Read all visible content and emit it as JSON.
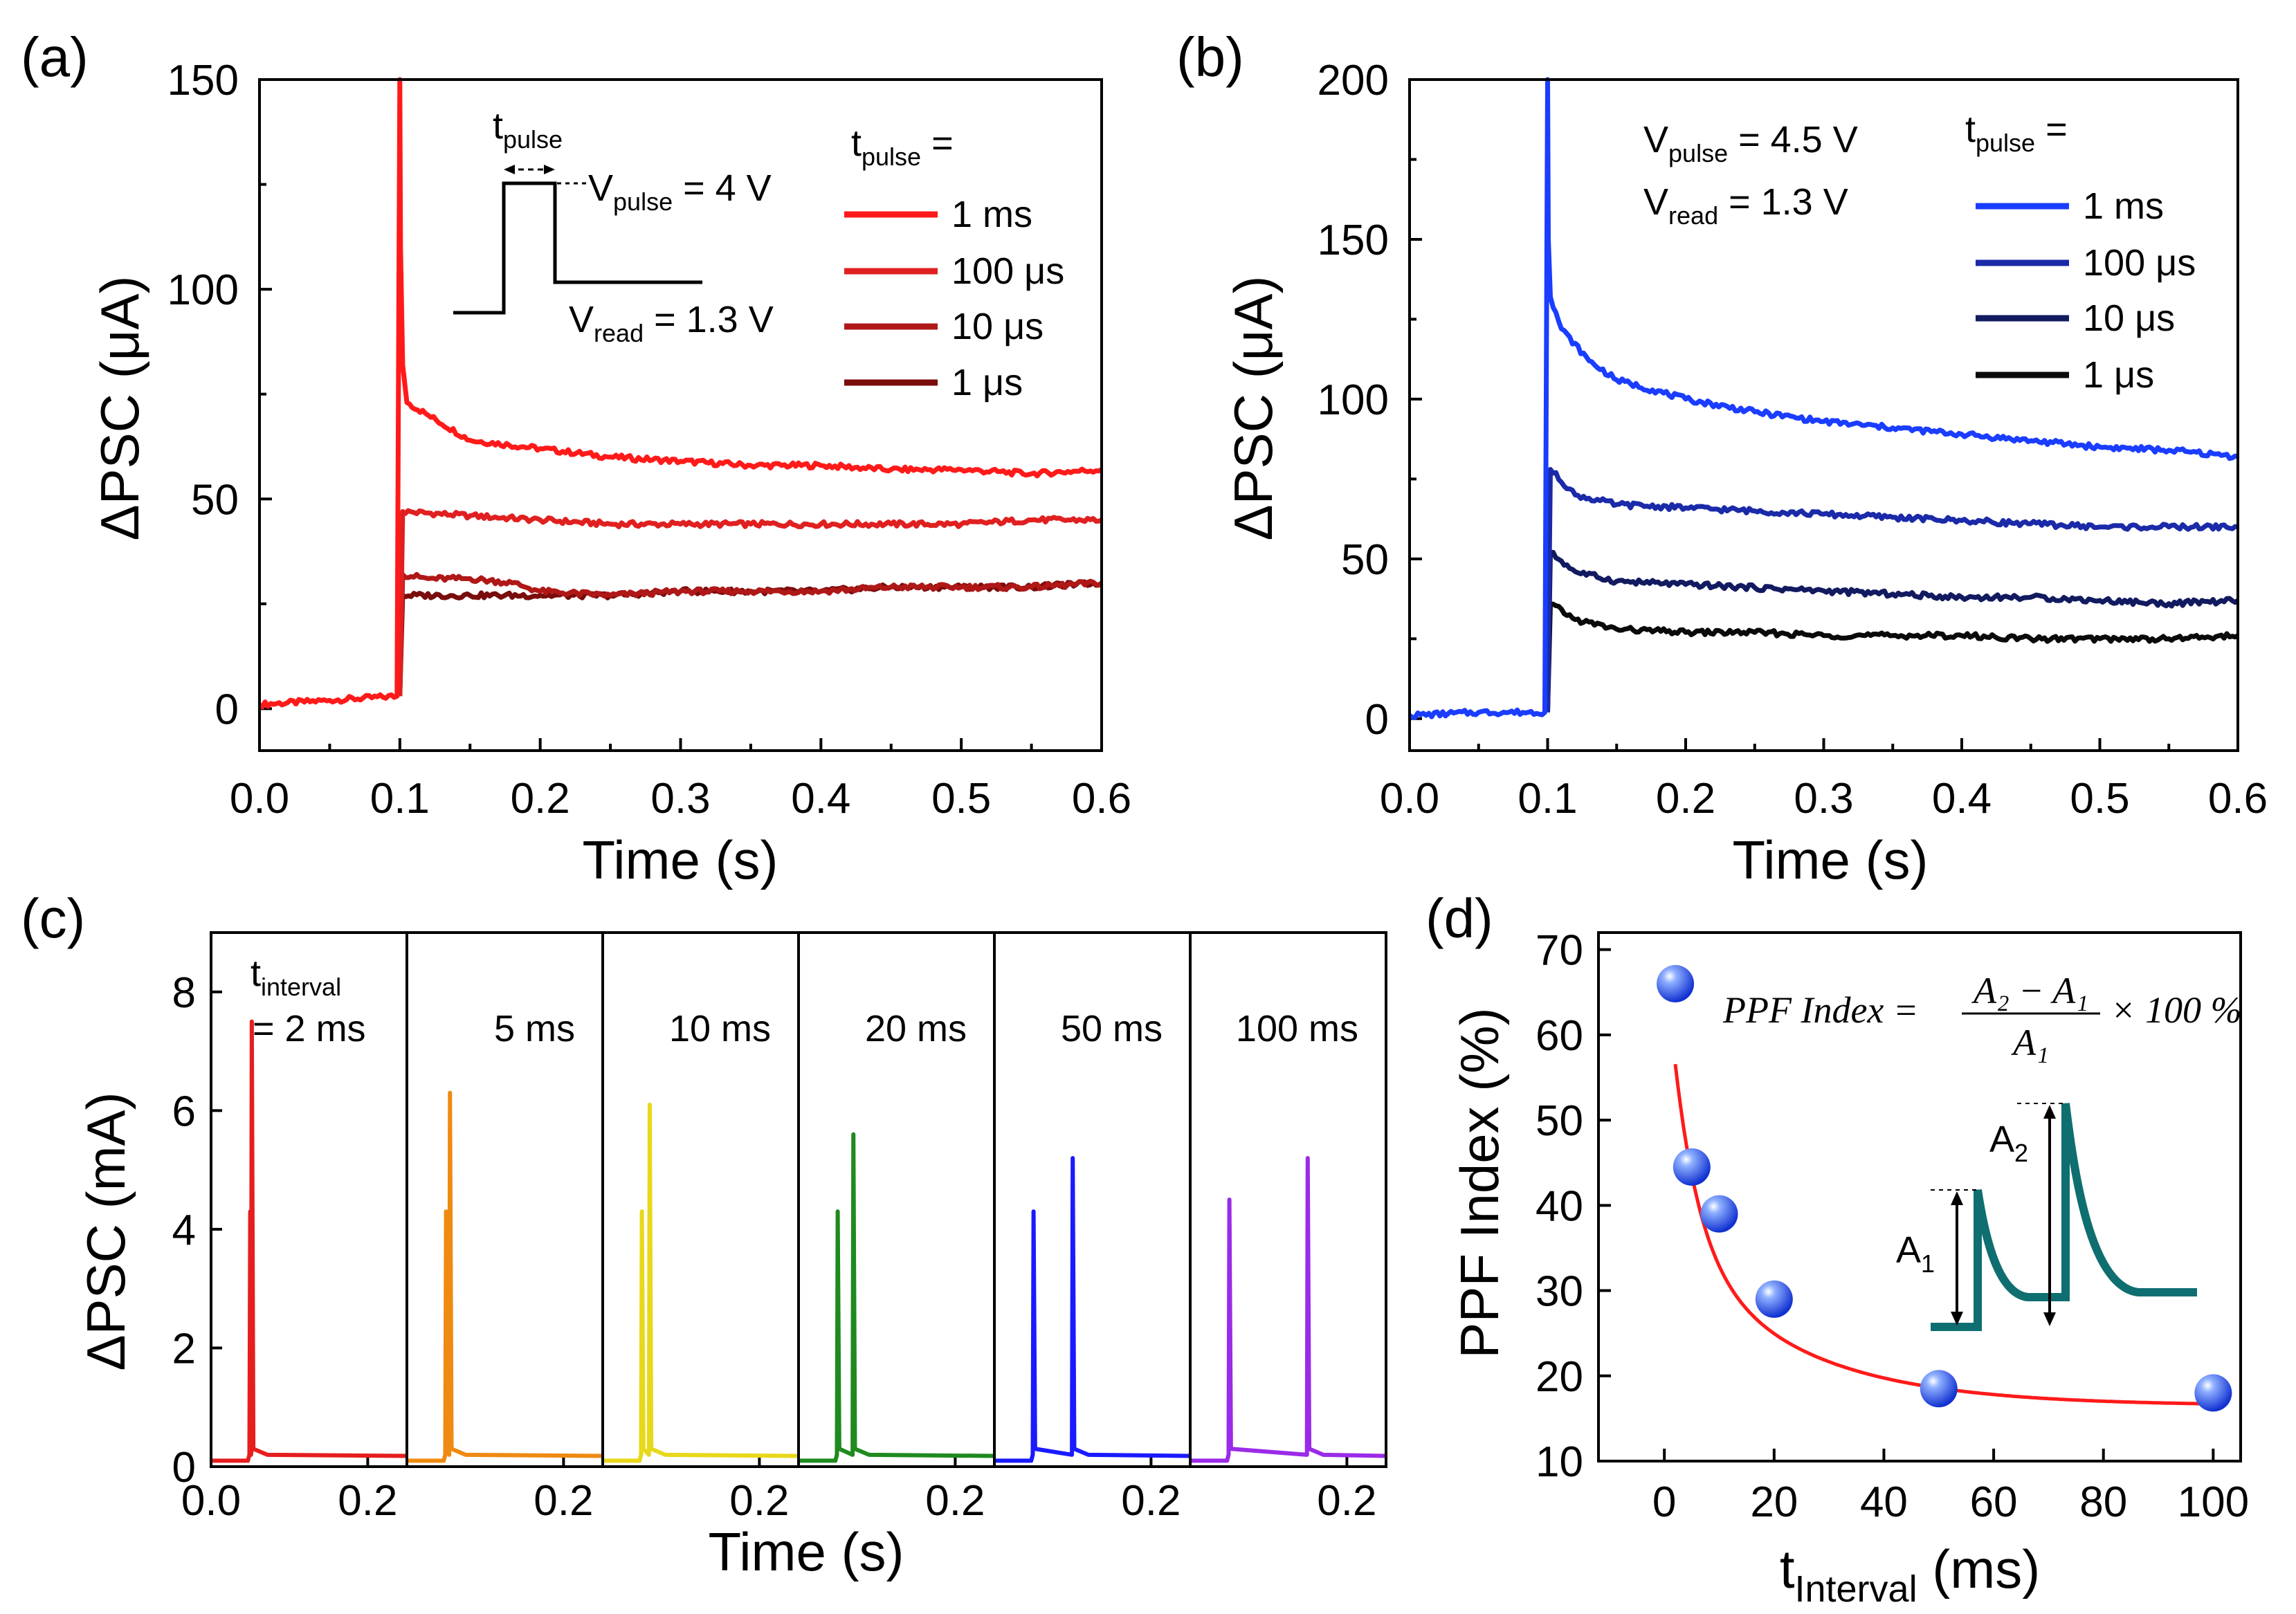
{
  "panels": {
    "a": {
      "label": "(a)"
    },
    "b": {
      "label": "(b)"
    },
    "c": {
      "label": "(c)"
    },
    "d": {
      "label": "(d)"
    }
  },
  "chart_data": [
    {
      "id": "a",
      "type": "line",
      "xlabel": "Time (s)",
      "ylabel": "ΔPSC (μA)",
      "xlim": [
        0,
        0.6
      ],
      "ylim": [
        -10,
        150
      ],
      "xticks": [
        "0.0",
        "0.1",
        "0.2",
        "0.3",
        "0.4",
        "0.5",
        "0.6"
      ],
      "yticks": [
        "0",
        "50",
        "100",
        "150"
      ],
      "legend_title": "t",
      "legend_title_sub": "pulse",
      "legend_title_tail": " =",
      "legend_labels": [
        "1 ms",
        "100 μs",
        "10 μs",
        "1 μs"
      ],
      "legend_colors": [
        "#ff1a1a",
        "#e02020",
        "#b01818",
        "#7a0c0c"
      ],
      "inset": {
        "tpulse_main": "t",
        "tpulse_sub": "pulse",
        "vpulse_main": "V",
        "vpulse_sub": "pulse",
        "vpulse_tail": " = 4 V",
        "vread_main": "V",
        "vread_sub": "read",
        "vread_tail": " = 1.3 V"
      },
      "series": [
        {
          "name": "1 ms",
          "color": "#ff1a1a",
          "x": [
            0,
            0.05,
            0.098,
            0.1,
            0.1005,
            0.102,
            0.105,
            0.12,
            0.15,
            0.2,
            0.25,
            0.3,
            0.35,
            0.4,
            0.45,
            0.5,
            0.55,
            0.6
          ],
          "y": [
            1,
            2,
            3,
            150,
            110,
            82,
            73,
            70,
            64,
            62,
            60,
            59,
            58,
            58,
            57,
            57,
            56,
            57
          ]
        },
        {
          "name": "100 μs",
          "color": "#e02020",
          "x": [
            0.1,
            0.102,
            0.15,
            0.2,
            0.25,
            0.3,
            0.35,
            0.4,
            0.45,
            0.5,
            0.55,
            0.6
          ],
          "y": [
            3,
            47,
            46,
            45,
            44,
            44,
            44,
            44,
            44,
            44,
            45,
            45
          ]
        },
        {
          "name": "10 μs",
          "color": "#b01818",
          "x": [
            0.1,
            0.102,
            0.12,
            0.15,
            0.18,
            0.2,
            0.25,
            0.3,
            0.35,
            0.4,
            0.45,
            0.5,
            0.55,
            0.6
          ],
          "y": [
            3,
            32,
            31,
            31,
            30,
            28,
            27,
            28,
            28,
            28,
            29,
            29,
            29,
            30
          ]
        },
        {
          "name": "1 μs",
          "color": "#7a0c0c",
          "x": [
            0.1,
            0.102,
            0.15,
            0.2,
            0.25,
            0.3,
            0.35,
            0.4,
            0.45,
            0.5,
            0.55,
            0.6
          ],
          "y": [
            3,
            27,
            27,
            27,
            27,
            28,
            28,
            28,
            29,
            29,
            29,
            30
          ]
        }
      ]
    },
    {
      "id": "b",
      "type": "line",
      "xlabel": "Time (s)",
      "ylabel": "ΔPSC (μA)",
      "xlim": [
        0,
        0.6
      ],
      "ylim": [
        -10,
        200
      ],
      "xticks": [
        "0.0",
        "0.1",
        "0.2",
        "0.3",
        "0.4",
        "0.5",
        "0.6"
      ],
      "yticks": [
        "0",
        "50",
        "100",
        "150",
        "200"
      ],
      "legend_title": "t",
      "legend_title_sub": "pulse",
      "legend_title_tail": " =",
      "legend_labels": [
        "1 ms",
        "100 μs",
        "10 μs",
        "1 μs"
      ],
      "legend_colors": [
        "#1a3dff",
        "#1a2aa8",
        "#121a60",
        "#0a0a0a"
      ],
      "annotation": {
        "vpulse_main": "V",
        "vpulse_sub": "pulse",
        "vpulse_tail": " = 4.5 V",
        "vread_main": "V",
        "vread_sub": "read",
        "vread_tail": " = 1.3 V"
      },
      "series": [
        {
          "name": "1 ms",
          "color": "#1a3dff",
          "x": [
            0,
            0.05,
            0.098,
            0.1,
            0.1005,
            0.102,
            0.11,
            0.13,
            0.15,
            0.2,
            0.25,
            0.3,
            0.35,
            0.4,
            0.45,
            0.5,
            0.55,
            0.6
          ],
          "y": [
            1,
            2,
            2,
            200,
            150,
            132,
            122,
            112,
            106,
            100,
            96,
            93,
            91,
            89,
            87,
            85,
            84,
            82
          ]
        },
        {
          "name": "100 μs",
          "color": "#1a2aa8",
          "x": [
            0.1,
            0.102,
            0.12,
            0.15,
            0.2,
            0.25,
            0.3,
            0.35,
            0.4,
            0.45,
            0.5,
            0.55,
            0.6
          ],
          "y": [
            2,
            78,
            70,
            67,
            66,
            65,
            64,
            63,
            62,
            61,
            60,
            60,
            60
          ]
        },
        {
          "name": "10 μs",
          "color": "#121a60",
          "x": [
            0.1,
            0.102,
            0.12,
            0.15,
            0.2,
            0.25,
            0.3,
            0.35,
            0.4,
            0.45,
            0.5,
            0.55,
            0.6
          ],
          "y": [
            2,
            52,
            46,
            43,
            42,
            41,
            40,
            39,
            38,
            38,
            37,
            36,
            37
          ]
        },
        {
          "name": "1 μs",
          "color": "#0a0a0a",
          "x": [
            0.1,
            0.102,
            0.12,
            0.15,
            0.2,
            0.25,
            0.3,
            0.35,
            0.4,
            0.45,
            0.5,
            0.55,
            0.6
          ],
          "y": [
            2,
            36,
            31,
            28,
            27,
            27,
            26,
            26,
            26,
            25,
            25,
            25,
            26
          ]
        }
      ]
    },
    {
      "id": "c",
      "type": "line",
      "xlabel": "Time (s)",
      "ylabel": "ΔPSC (mA)",
      "ylim": [
        0,
        9
      ],
      "yticks": [
        "0",
        "2",
        "4",
        "6",
        "8"
      ],
      "xlim_each": [
        0,
        0.25
      ],
      "xtick_labels": [
        "0.0",
        "0.2",
        "0.2",
        "0.2",
        "0.2",
        "0.2",
        "0.2"
      ],
      "interval_label_main": "t",
      "interval_label_sub": "interval",
      "subplots": [
        {
          "label": "= 2 ms",
          "color": "#e61e1e",
          "peaks": [
            [
              0.05,
              4.3
            ],
            [
              0.052,
              7.5
            ]
          ]
        },
        {
          "label": "5 ms",
          "color": "#ef8a12",
          "peaks": [
            [
              0.05,
              4.3
            ],
            [
              0.055,
              6.3
            ]
          ]
        },
        {
          "label": "10 ms",
          "color": "#e8d81a",
          "peaks": [
            [
              0.05,
              4.3
            ],
            [
              0.06,
              6.1
            ]
          ]
        },
        {
          "label": "20 ms",
          "color": "#1f8a1f",
          "peaks": [
            [
              0.05,
              4.3
            ],
            [
              0.07,
              5.6
            ]
          ]
        },
        {
          "label": "50 ms",
          "color": "#1a1aff",
          "peaks": [
            [
              0.05,
              4.3
            ],
            [
              0.1,
              5.2
            ]
          ]
        },
        {
          "label": "100 ms",
          "color": "#9a2be8",
          "peaks": [
            [
              0.05,
              4.5
            ],
            [
              0.15,
              5.2
            ]
          ]
        }
      ]
    },
    {
      "id": "d",
      "type": "scatter",
      "xlabel_main": "t",
      "xlabel_sub": "Interval",
      "xlabel_tail": " (ms)",
      "ylabel": "PPF Index (%)",
      "xlim": [
        -12,
        105
      ],
      "ylim": [
        10,
        72
      ],
      "xticks": [
        "0",
        "20",
        "40",
        "60",
        "80",
        "100"
      ],
      "yticks": [
        "10",
        "20",
        "30",
        "40",
        "50",
        "60",
        "70"
      ],
      "points": {
        "x": [
          2,
          5,
          10,
          20,
          50,
          100
        ],
        "y": [
          66,
          44.5,
          39,
          29,
          18.5,
          18
        ]
      },
      "fit": {
        "color": "#ff1a1a",
        "model": "biexponential"
      },
      "formula": {
        "lhs": "PPF Index =",
        "num": "A₂ − A₁",
        "den": "A₁",
        "tail": "× 100 %"
      },
      "inset": {
        "a1_main": "A",
        "a1_sub": "1",
        "a2_main": "A",
        "a2_sub": "2"
      }
    }
  ]
}
